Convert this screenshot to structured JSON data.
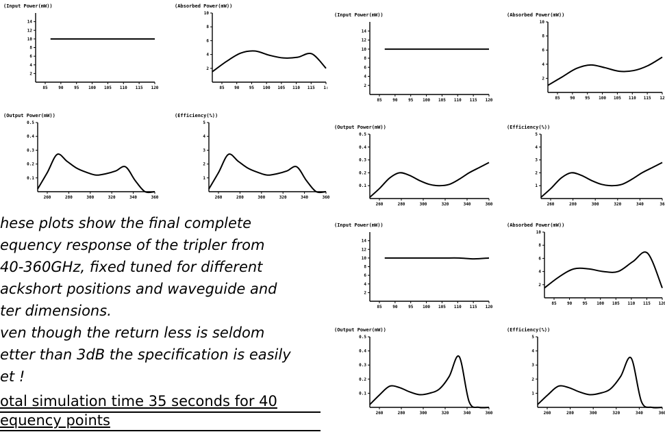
{
  "caption": {
    "lines": [
      "hese plots show the final complete",
      "equency response of the tripler from",
      "40-360GHz, fixed tuned for different",
      "ackshort positions and waveguide and",
      "ter dimensions.",
      "ven though the return less is seldom",
      "etter than 3dB the specification is easily",
      "et !"
    ]
  },
  "note": {
    "lines": [
      "otal simulation time 35 seconds for 40",
      "equency points"
    ]
  },
  "chart_data": [
    {
      "id": "g1-input",
      "type": "line",
      "title": "(Input Power(mW))",
      "x": [
        85,
        90,
        95,
        100,
        105,
        110,
        115,
        120
      ],
      "xticks": [
        "85",
        "90",
        "95",
        "100",
        "105",
        "110",
        "115",
        "120"
      ],
      "xlim": [
        80,
        120
      ],
      "ylim": [
        0,
        16
      ],
      "yticks": [
        2,
        4,
        6,
        8,
        10,
        12,
        14
      ],
      "series": [
        {
          "values": [
            10,
            10,
            10,
            10,
            10,
            10,
            10,
            10
          ]
        }
      ]
    },
    {
      "id": "g1-absorbed",
      "type": "line",
      "title": "(Absorbed Power(mW))",
      "x": [
        80,
        85,
        90,
        95,
        100,
        105,
        110,
        115,
        120
      ],
      "xticks": [
        "85",
        "90",
        "95",
        "100",
        "105",
        "110",
        "115",
        "1:"
      ],
      "xlim": [
        80,
        120
      ],
      "ylim": [
        0,
        10
      ],
      "yticks": [
        2,
        4,
        6,
        8,
        10
      ],
      "series": [
        {
          "values": [
            1.5,
            3.0,
            4.2,
            4.5,
            3.9,
            3.5,
            3.6,
            4.1,
            2.0
          ]
        }
      ]
    },
    {
      "id": "g1-output",
      "type": "line",
      "title": "(Output Power(mW))",
      "x": [
        240,
        250,
        260,
        270,
        280,
        290,
        300,
        310,
        320,
        330,
        340,
        350,
        360
      ],
      "xticks": [
        "260",
        "280",
        "300",
        "320",
        "340",
        "360"
      ],
      "xlim": [
        240,
        360
      ],
      "ylim": [
        0,
        0.5
      ],
      "yticks": [
        "0.1",
        "0.2",
        "0.3",
        "0.4",
        "0.5"
      ],
      "series": [
        {
          "values": [
            0.02,
            0.14,
            0.27,
            0.22,
            0.17,
            0.14,
            0.12,
            0.13,
            0.15,
            0.18,
            0.08,
            0.0,
            0.0
          ]
        }
      ]
    },
    {
      "id": "g1-efficiency",
      "type": "line",
      "title": "(Efficiency(%))",
      "x": [
        240,
        250,
        260,
        270,
        280,
        290,
        300,
        310,
        320,
        330,
        340,
        350,
        360
      ],
      "xticks": [
        "260",
        "280",
        "300",
        "320",
        "340",
        "360"
      ],
      "xlim": [
        240,
        360
      ],
      "ylim": [
        0,
        5
      ],
      "yticks": [
        "1",
        "2",
        "3",
        "4",
        "5"
      ],
      "series": [
        {
          "values": [
            0.2,
            1.4,
            2.7,
            2.2,
            1.7,
            1.4,
            1.2,
            1.3,
            1.5,
            1.8,
            0.8,
            0.0,
            0.0
          ]
        }
      ]
    },
    {
      "id": "g2-input",
      "type": "line",
      "title": "(Input Power(mW))",
      "x": [
        85,
        90,
        95,
        100,
        105,
        110,
        115,
        120
      ],
      "xticks": [
        "85",
        "90",
        "95",
        "100",
        "105",
        "110",
        "115",
        "120"
      ],
      "xlim": [
        80,
        120
      ],
      "ylim": [
        0,
        16
      ],
      "yticks": [
        2,
        4,
        6,
        8,
        10,
        12,
        14
      ],
      "series": [
        {
          "values": [
            10,
            10,
            10,
            10,
            10,
            10,
            10,
            10
          ]
        }
      ]
    },
    {
      "id": "g2-absorbed",
      "type": "line",
      "title": "(Absorbed Power(mW))",
      "x": [
        80,
        85,
        90,
        95,
        100,
        105,
        110,
        115,
        120
      ],
      "xticks": [
        "85",
        "90",
        "95",
        "100",
        "105",
        "110",
        "115",
        "12"
      ],
      "xlim": [
        80,
        120
      ],
      "ylim": [
        0,
        10
      ],
      "yticks": [
        2,
        4,
        6,
        8,
        10
      ],
      "series": [
        {
          "values": [
            1.0,
            2.2,
            3.4,
            3.9,
            3.5,
            3.0,
            3.1,
            3.8,
            5.0
          ]
        }
      ]
    },
    {
      "id": "g2-output",
      "type": "line",
      "title": "(Output Power(mW))",
      "x": [
        240,
        250,
        260,
        270,
        280,
        290,
        300,
        310,
        320,
        330,
        340,
        350,
        360
      ],
      "xticks": [
        "260",
        "280",
        "300",
        "320",
        "340",
        "360"
      ],
      "xlim": [
        240,
        360
      ],
      "ylim": [
        0,
        0.5
      ],
      "yticks": [
        "0.1",
        "0.2",
        "0.3",
        "0.4",
        "0.5"
      ],
      "series": [
        {
          "values": [
            0.01,
            0.08,
            0.16,
            0.2,
            0.18,
            0.14,
            0.11,
            0.1,
            0.11,
            0.15,
            0.2,
            0.24,
            0.28
          ]
        }
      ]
    },
    {
      "id": "g2-efficiency",
      "type": "line",
      "title": "(Efficiency(%))",
      "x": [
        240,
        250,
        260,
        270,
        280,
        290,
        300,
        310,
        320,
        330,
        340,
        350,
        360
      ],
      "xticks": [
        "260",
        "280",
        "300",
        "320",
        "340",
        "36"
      ],
      "xlim": [
        240,
        360
      ],
      "ylim": [
        0,
        5
      ],
      "yticks": [
        "1",
        "2",
        "3",
        "4",
        "5"
      ],
      "series": [
        {
          "values": [
            0.1,
            0.8,
            1.6,
            2.0,
            1.8,
            1.4,
            1.1,
            1.0,
            1.1,
            1.5,
            2.0,
            2.4,
            2.8
          ]
        }
      ]
    },
    {
      "id": "g3-input",
      "type": "line",
      "title": "(Input Power(mW))",
      "x": [
        85,
        90,
        95,
        100,
        105,
        110,
        115,
        120
      ],
      "xticks": [
        "85",
        "90",
        "95",
        "100",
        "105",
        "110",
        "115",
        "120"
      ],
      "xlim": [
        80,
        120
      ],
      "ylim": [
        0,
        16
      ],
      "yticks": [
        2,
        4,
        6,
        8,
        10,
        12,
        14
      ],
      "series": [
        {
          "values": [
            10,
            10,
            10,
            10,
            10,
            10,
            9.8,
            10
          ]
        }
      ]
    },
    {
      "id": "g3-absorbed",
      "type": "line",
      "title": "(Absorbed Power(mW))",
      "x": [
        80,
        85,
        90,
        95,
        100,
        105,
        110,
        115,
        120
      ],
      "xticks": [
        "85",
        "90",
        "95",
        "100",
        "105",
        "110",
        "115",
        "120"
      ],
      "xlim": [
        80,
        120
      ],
      "ylim": [
        0,
        10
      ],
      "yticks": [
        2,
        4,
        6,
        8,
        10
      ],
      "series": [
        {
          "values": [
            1.5,
            3.2,
            4.4,
            4.4,
            4.0,
            4.0,
            5.5,
            6.8,
            1.5
          ]
        }
      ]
    },
    {
      "id": "g3-output",
      "type": "line",
      "title": "(Output Power(mW))",
      "x": [
        240,
        250,
        260,
        270,
        280,
        290,
        300,
        310,
        320,
        330,
        340,
        350,
        360
      ],
      "xticks": [
        "260",
        "280",
        "300",
        "320",
        "340",
        "360"
      ],
      "xlim": [
        240,
        360
      ],
      "ylim": [
        0,
        0.5
      ],
      "yticks": [
        "0.1",
        "0.2",
        "0.3",
        "0.4",
        "0.5"
      ],
      "series": [
        {
          "values": [
            0.02,
            0.09,
            0.15,
            0.14,
            0.11,
            0.09,
            0.1,
            0.13,
            0.22,
            0.36,
            0.04,
            0.0,
            0.0
          ]
        }
      ]
    },
    {
      "id": "g3-efficiency",
      "type": "line",
      "title": "(Efficiency(%))",
      "x": [
        240,
        250,
        260,
        270,
        280,
        290,
        300,
        310,
        320,
        330,
        340,
        350,
        360
      ],
      "xticks": [
        "260",
        "280",
        "300",
        "320",
        "340",
        "360"
      ],
      "xlim": [
        240,
        360
      ],
      "ylim": [
        0,
        5
      ],
      "yticks": [
        "1",
        "2",
        "3",
        "4",
        "5"
      ],
      "series": [
        {
          "values": [
            0.2,
            0.9,
            1.5,
            1.4,
            1.1,
            0.9,
            1.0,
            1.3,
            2.2,
            3.5,
            0.4,
            0.0,
            0.0
          ]
        }
      ]
    }
  ]
}
